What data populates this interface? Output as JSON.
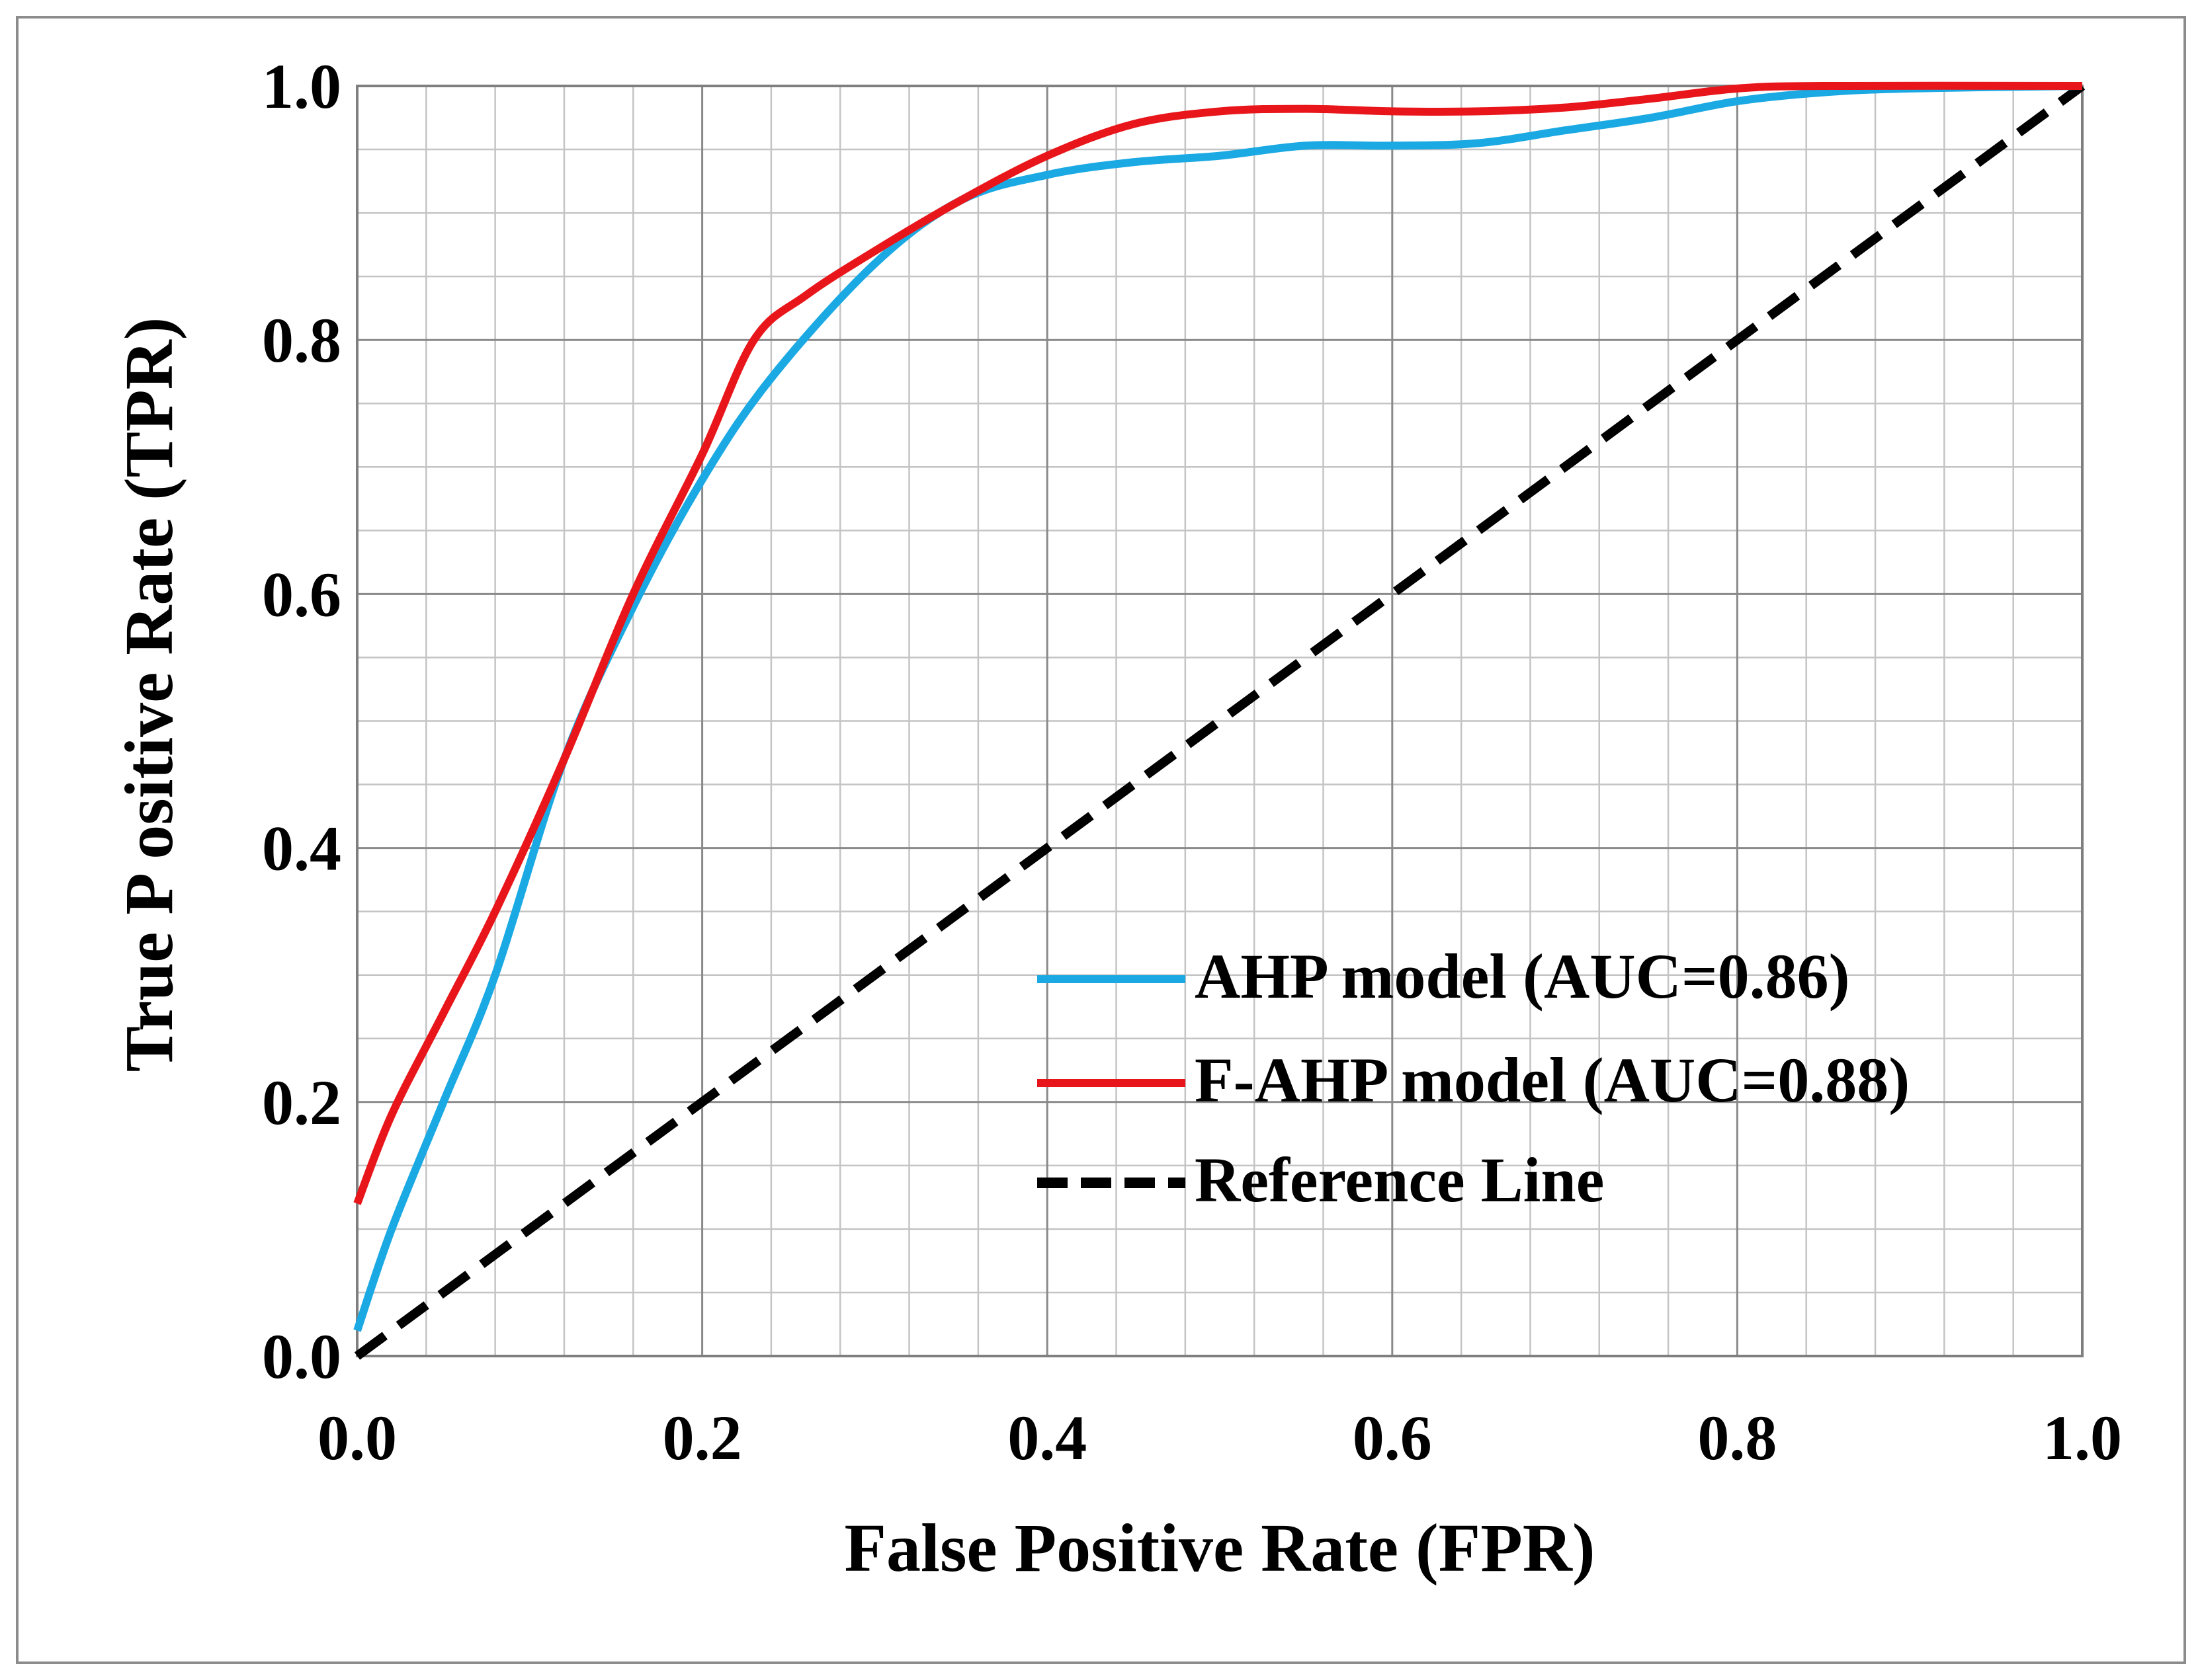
{
  "chart_data": {
    "type": "line",
    "xlabel": "False Positive Rate (FPR)",
    "ylabel": "True  P ositive Rate (TPR)",
    "xlim": [
      0,
      1
    ],
    "ylim": [
      0,
      1
    ],
    "x_ticks": [
      "0.0",
      "0.2",
      "0.4",
      "0.6",
      "0.8",
      "1.0"
    ],
    "y_ticks": [
      "0.0",
      "0.2",
      "0.4",
      "0.6",
      "0.8",
      "1.0"
    ],
    "grid": true,
    "legend_position": "lower-right",
    "series": [
      {
        "name": "AHP model (AUC=0.86)",
        "color": "#1BA9E3",
        "style": "solid",
        "points": [
          [
            0,
            0.02
          ],
          [
            0.02,
            0.1
          ],
          [
            0.05,
            0.2
          ],
          [
            0.08,
            0.3
          ],
          [
            0.12,
            0.47
          ],
          [
            0.16,
            0.59
          ],
          [
            0.2,
            0.69
          ],
          [
            0.24,
            0.77
          ],
          [
            0.3,
            0.86
          ],
          [
            0.35,
            0.91
          ],
          [
            0.4,
            0.93
          ],
          [
            0.45,
            0.94
          ],
          [
            0.5,
            0.945
          ],
          [
            0.55,
            0.953
          ],
          [
            0.6,
            0.953
          ],
          [
            0.65,
            0.955
          ],
          [
            0.7,
            0.965
          ],
          [
            0.75,
            0.975
          ],
          [
            0.8,
            0.988
          ],
          [
            0.85,
            0.995
          ],
          [
            0.9,
            0.998
          ],
          [
            1.0,
            1.0
          ]
        ]
      },
      {
        "name": "F-AHP model (AUC=0.88)",
        "color": "#E8161A",
        "style": "solid",
        "points": [
          [
            0,
            0.12
          ],
          [
            0.02,
            0.19
          ],
          [
            0.05,
            0.27
          ],
          [
            0.08,
            0.35
          ],
          [
            0.12,
            0.47
          ],
          [
            0.16,
            0.6
          ],
          [
            0.2,
            0.71
          ],
          [
            0.23,
            0.8
          ],
          [
            0.26,
            0.835
          ],
          [
            0.3,
            0.87
          ],
          [
            0.35,
            0.91
          ],
          [
            0.4,
            0.945
          ],
          [
            0.45,
            0.97
          ],
          [
            0.5,
            0.98
          ],
          [
            0.55,
            0.982
          ],
          [
            0.6,
            0.98
          ],
          [
            0.65,
            0.98
          ],
          [
            0.7,
            0.983
          ],
          [
            0.75,
            0.99
          ],
          [
            0.8,
            0.998
          ],
          [
            0.85,
            1.0
          ],
          [
            1.0,
            1.0
          ]
        ]
      },
      {
        "name": "Reference Line",
        "color": "#000000",
        "style": "dashed",
        "points": [
          [
            0,
            0
          ],
          [
            1,
            1
          ]
        ]
      }
    ]
  }
}
